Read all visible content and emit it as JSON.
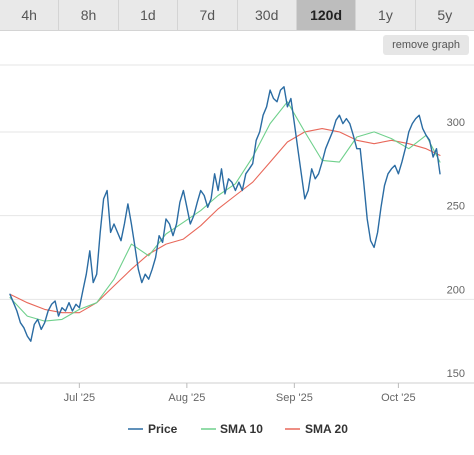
{
  "tabs": [
    {
      "label": "4h",
      "active": false
    },
    {
      "label": "8h",
      "active": false
    },
    {
      "label": "1d",
      "active": false
    },
    {
      "label": "7d",
      "active": false
    },
    {
      "label": "30d",
      "active": false
    },
    {
      "label": "120d",
      "active": true
    },
    {
      "label": "1y",
      "active": false
    },
    {
      "label": "5y",
      "active": false
    }
  ],
  "remove_graph_label": "remove graph",
  "colors": {
    "price": "#2b6ca3",
    "sma10": "#6fd08c",
    "sma20": "#e8685a",
    "grid": "#e6e6e6"
  },
  "chart_data": {
    "type": "line",
    "title": "",
    "xlabel": "",
    "ylabel": "",
    "ylim": [
      150,
      340
    ],
    "y_ticks": [
      150,
      200,
      250,
      300
    ],
    "x_ticks": [
      {
        "label": "Jul '25",
        "day": 20
      },
      {
        "label": "Aug '25",
        "day": 51
      },
      {
        "label": "Sep '25",
        "day": 82
      },
      {
        "label": "Oct '25",
        "day": 112
      }
    ],
    "x_range": [
      0,
      124
    ],
    "grid": true,
    "legend_position": "bottom-center",
    "series": [
      {
        "name": "Price",
        "color_key": "price",
        "x": [
          0,
          1,
          2,
          3,
          4,
          5,
          6,
          7,
          8,
          9,
          10,
          11,
          12,
          13,
          14,
          15,
          16,
          17,
          18,
          19,
          20,
          21,
          22,
          23,
          24,
          25,
          26,
          27,
          28,
          29,
          30,
          31,
          32,
          33,
          34,
          35,
          36,
          37,
          38,
          39,
          40,
          41,
          42,
          43,
          44,
          45,
          46,
          47,
          48,
          49,
          50,
          51,
          52,
          53,
          54,
          55,
          56,
          57,
          58,
          59,
          60,
          61,
          62,
          63,
          64,
          65,
          66,
          67,
          68,
          69,
          70,
          71,
          72,
          73,
          74,
          75,
          76,
          77,
          78,
          79,
          80,
          81,
          82,
          83,
          84,
          85,
          86,
          87,
          88,
          89,
          90,
          91,
          92,
          93,
          94,
          95,
          96,
          97,
          98,
          99,
          100,
          101,
          102,
          103,
          104,
          105,
          106,
          107,
          108,
          109,
          110,
          111,
          112,
          113,
          114,
          115,
          116,
          117,
          118,
          119,
          120,
          121,
          122,
          123,
          124
        ],
        "y": [
          203,
          198,
          193,
          186,
          183,
          178,
          175,
          185,
          188,
          182,
          186,
          193,
          197,
          199,
          190,
          195,
          193,
          198,
          193,
          197,
          195,
          205,
          215,
          229,
          210,
          215,
          240,
          260,
          265,
          240,
          245,
          240,
          235,
          245,
          257,
          245,
          232,
          218,
          210,
          215,
          212,
          218,
          225,
          238,
          234,
          248,
          245,
          238,
          245,
          258,
          265,
          255,
          245,
          250,
          258,
          265,
          262,
          255,
          260,
          275,
          265,
          278,
          263,
          272,
          270,
          265,
          270,
          265,
          275,
          278,
          281,
          295,
          300,
          310,
          315,
          325,
          320,
          318,
          325,
          327,
          315,
          320,
          305,
          290,
          275,
          260,
          265,
          278,
          272,
          275,
          282,
          290,
          295,
          300,
          307,
          310,
          305,
          308,
          305,
          298,
          290,
          290,
          270,
          248,
          235,
          231,
          240,
          255,
          268,
          275,
          278,
          280,
          275,
          282,
          290,
          300,
          305,
          308,
          310,
          302,
          298,
          295,
          285,
          290,
          275
        ]
      },
      {
        "name": "SMA 10",
        "color_key": "sma10",
        "x": [
          0,
          5,
          10,
          15,
          20,
          25,
          30,
          35,
          40,
          45,
          50,
          55,
          60,
          65,
          70,
          75,
          80,
          85,
          90,
          95,
          100,
          105,
          110,
          115,
          120,
          124
        ],
        "y": [
          201,
          190,
          187,
          188,
          194,
          198,
          212,
          233,
          226,
          239,
          246,
          253,
          262,
          269,
          285,
          305,
          318,
          300,
          283,
          282,
          297,
          300,
          296,
          290,
          298,
          282
        ]
      },
      {
        "name": "SMA 20",
        "color_key": "sma20",
        "x": [
          0,
          5,
          10,
          15,
          20,
          25,
          30,
          35,
          40,
          45,
          50,
          55,
          60,
          65,
          70,
          75,
          80,
          85,
          90,
          95,
          100,
          105,
          110,
          115,
          120,
          124
        ],
        "y": [
          203,
          198,
          194,
          192,
          192,
          198,
          208,
          218,
          227,
          233,
          236,
          244,
          254,
          262,
          270,
          282,
          294,
          300,
          302,
          300,
          295,
          293,
          295,
          293,
          290,
          286
        ]
      }
    ]
  }
}
